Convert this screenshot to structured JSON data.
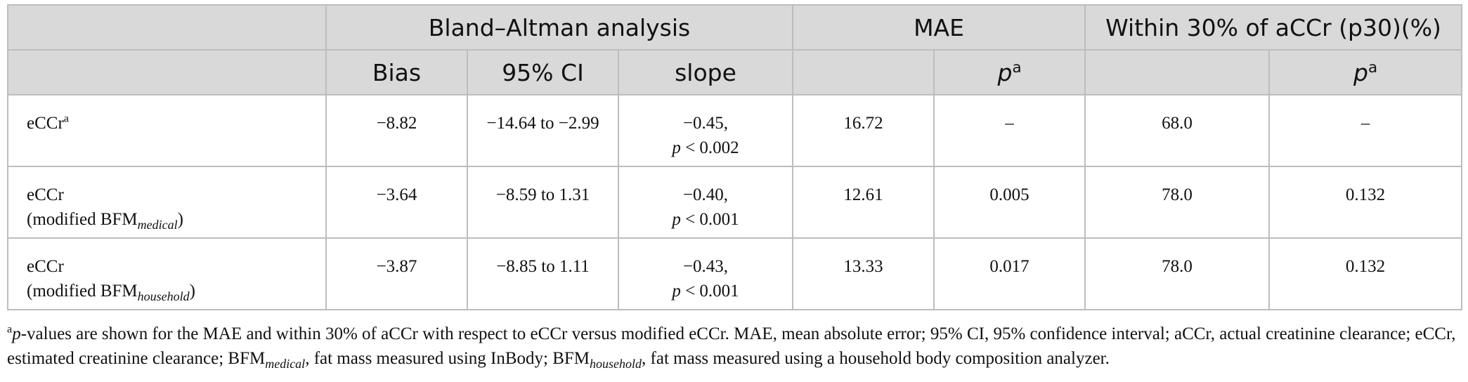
{
  "header": {
    "group1": "Bland–Altman analysis",
    "group2": "MAE",
    "group3": "Within 30% of aCCr (p30)(%)",
    "sub_bias": "Bias",
    "sub_ci": "95% CI",
    "sub_slope": "slope",
    "sub_p": "p",
    "sub_p_sup": "a"
  },
  "rows": [
    {
      "label_main": "eCCr",
      "label_sup": "a",
      "bias": "−8.82",
      "ci": "−14.64 to −2.99",
      "slope_line1": "−0.45,",
      "slope_p": "p",
      "slope_line2": " < 0.002",
      "mae": "16.72",
      "mae_p": "–",
      "p30": "68.0",
      "p30_p": "–"
    },
    {
      "label_main": "eCCr",
      "label_paren_open": "(modified BFM",
      "label_sub": "medical",
      "label_paren_close": ")",
      "bias": "−3.64",
      "ci": "−8.59 to 1.31",
      "slope_line1": "−0.40,",
      "slope_p": "p",
      "slope_line2": " < 0.001",
      "mae": "12.61",
      "mae_p": "0.005",
      "p30": "78.0",
      "p30_p": "0.132"
    },
    {
      "label_main": "eCCr",
      "label_paren_open": "(modified BFM",
      "label_sub": "household",
      "label_paren_close": ")",
      "bias": "−3.87",
      "ci": "−8.85 to 1.11",
      "slope_line1": "−0.43,",
      "slope_p": "p",
      "slope_line2": " < 0.001",
      "mae": "13.33",
      "mae_p": "0.017",
      "p30": "78.0",
      "p30_p": "0.132"
    }
  ],
  "footnote": {
    "sup": "a",
    "p_italic": "p",
    "text1": "-values are shown for the MAE and within 30% of aCCr with respect to eCCr versus modified eCCr. MAE, mean absolute error; 95% CI, 95% confidence interval; aCCr, actual creatinine clearance; eCCr, estimated creatinine clearance; BFM",
    "sub1": "medical",
    "text2": ", fat mass measured using InBody; BFM",
    "sub2": "household",
    "text3": ", fat mass measured using a household body composition analyzer."
  }
}
